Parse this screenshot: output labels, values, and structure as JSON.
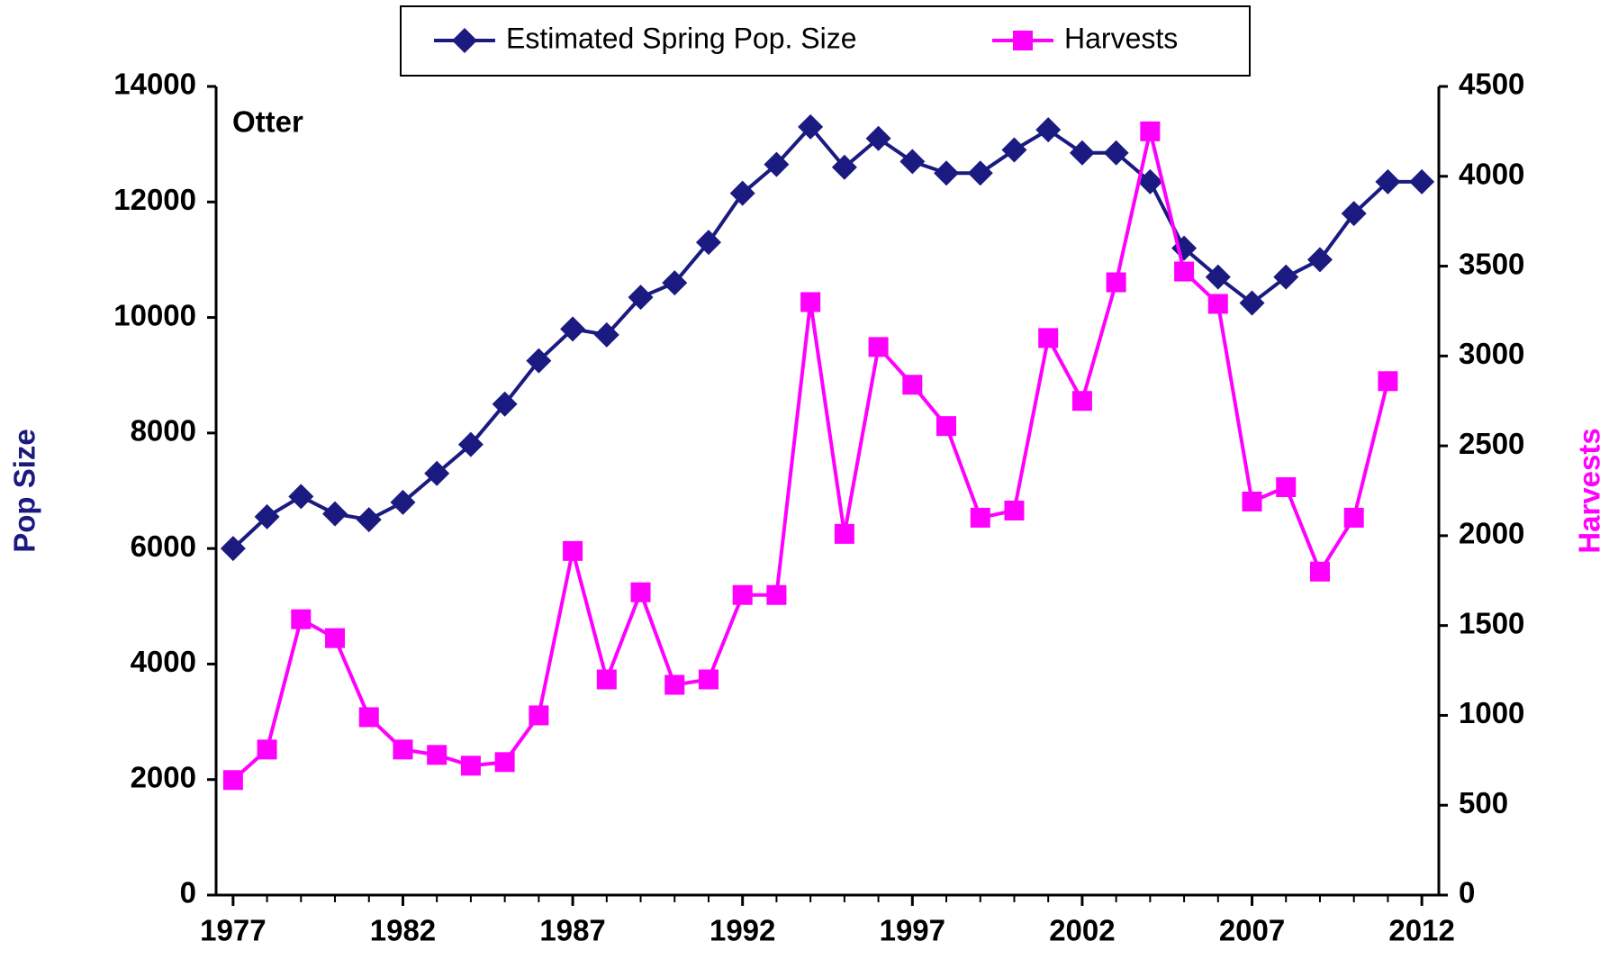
{
  "chart_data": {
    "type": "line",
    "annotation": "Otter",
    "y_label": "Pop Size",
    "y2_label": "Harvests",
    "x": [
      1977,
      1978,
      1979,
      1980,
      1981,
      1982,
      1983,
      1984,
      1985,
      1986,
      1987,
      1988,
      1989,
      1990,
      1991,
      1992,
      1993,
      1994,
      1995,
      1996,
      1997,
      1998,
      1999,
      2000,
      2001,
      2002,
      2003,
      2004,
      2005,
      2006,
      2007,
      2008,
      2009,
      2010,
      2011,
      2012
    ],
    "xlim": [
      1976.5,
      2012.5
    ],
    "xticks": [
      1977,
      1982,
      1987,
      1992,
      1997,
      2002,
      2007,
      2012
    ],
    "ylim": [
      0,
      14000
    ],
    "yticks": [
      0,
      2000,
      4000,
      6000,
      8000,
      10000,
      12000,
      14000
    ],
    "y2lim": [
      0,
      4500
    ],
    "y2ticks": [
      0,
      500,
      1000,
      1500,
      2000,
      2500,
      3000,
      3500,
      4000,
      4500
    ],
    "grid": false,
    "legend": "top",
    "series": [
      {
        "name": "Estimated Spring Pop. Size",
        "color": "#1a1a80",
        "marker": "diamond",
        "values": [
          6000,
          6550,
          6900,
          6600,
          6500,
          6800,
          7300,
          7800,
          8500,
          9250,
          9800,
          9700,
          10350,
          10600,
          11300,
          12150,
          12650,
          13300,
          12600,
          13100,
          12700,
          12500,
          12500,
          12900,
          13250,
          12850,
          12850,
          12350,
          11200,
          10700,
          10250,
          10700,
          11000,
          11800,
          12350,
          12350
        ]
      },
      {
        "name": "Harvests",
        "color": "#ff00ff",
        "marker": "square",
        "axis": "y2",
        "values": [
          640,
          810,
          1535,
          1430,
          990,
          810,
          780,
          720,
          740,
          1000,
          1915,
          1200,
          1685,
          1170,
          1200,
          1670,
          1670,
          3300,
          2010,
          3050,
          2840,
          2610,
          2100,
          2140,
          3100,
          2750,
          3410,
          4250,
          3470,
          3290,
          2190,
          2270,
          1800,
          2100,
          2860,
          null
        ]
      }
    ]
  }
}
